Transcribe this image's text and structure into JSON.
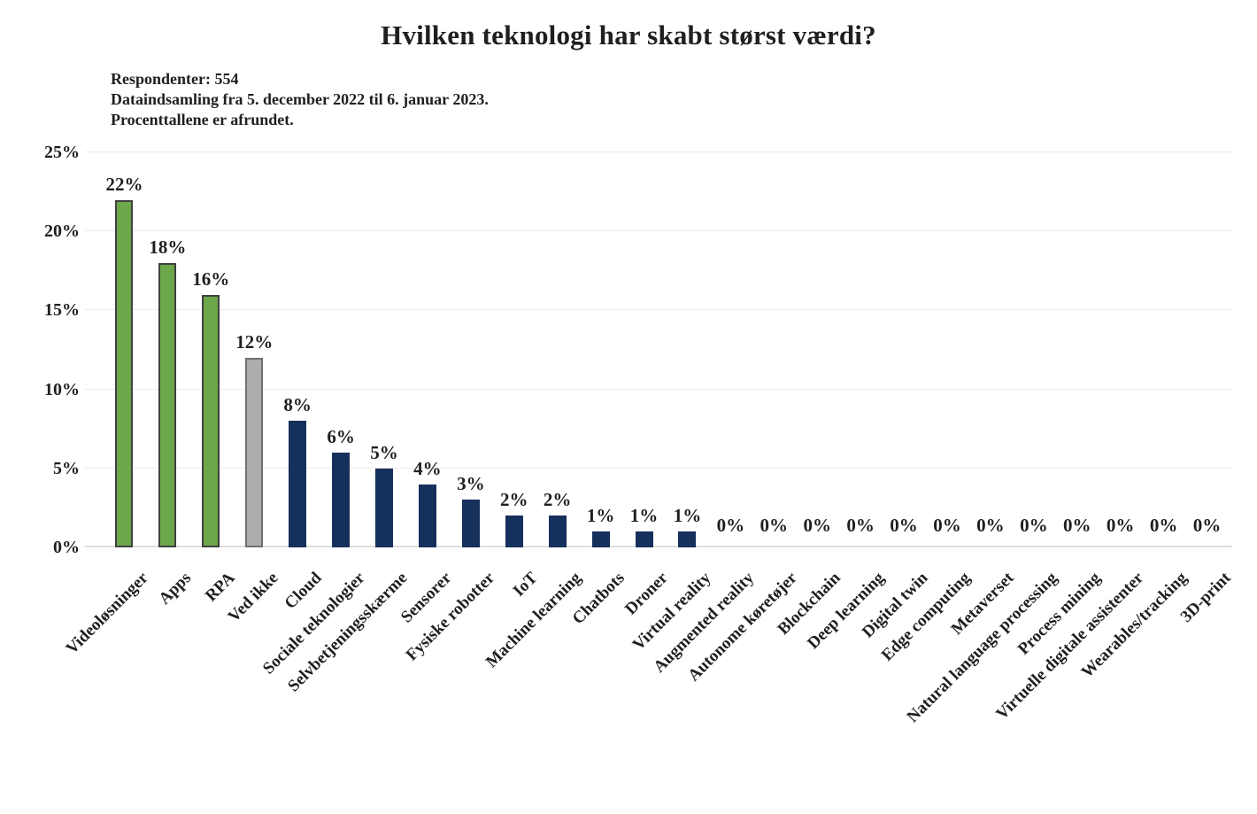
{
  "title": "Hvilken teknologi har skabt størst værdi?",
  "subtitle_lines": [
    "Respondenter: 554",
    "Dataindsamling fra 5. december 2022 til 6. januar 2023.",
    "Procenttallene er afrundet."
  ],
  "chart_data": {
    "type": "bar",
    "title": "Hvilken teknologi har skabt størst værdi?",
    "xlabel": "",
    "ylabel": "",
    "ylim": [
      0,
      25
    ],
    "grid": true,
    "legend": "none",
    "categories": [
      "Videoløsninger",
      "Apps",
      "RPA",
      "Ved ikke",
      "Cloud",
      "Sociale teknologier",
      "Selvbetjeningsskærme",
      "Sensorer",
      "Fysiske robotter",
      "IoT",
      "Machine learning",
      "Chatbots",
      "Droner",
      "Virtual reality",
      "Augmented reality",
      "Autonome køretøjer",
      "Blockchain",
      "Deep learning",
      "Digital twin",
      "Edge computing",
      "Metaverset",
      "Natural language processing",
      "Process mining",
      "Virtuelle digitale assistenter",
      "Wearables/tracking",
      "3D-print"
    ],
    "values": [
      22,
      18,
      16,
      12,
      8,
      6,
      5,
      4,
      3,
      2,
      2,
      1,
      1,
      1,
      0,
      0,
      0,
      0,
      0,
      0,
      0,
      0,
      0,
      0,
      0,
      0
    ],
    "value_labels": [
      "22%",
      "18%",
      "16%",
      "12%",
      "8%",
      "6%",
      "5%",
      "4%",
      "3%",
      "2%",
      "2%",
      "1%",
      "1%",
      "1%",
      "0%",
      "0%",
      "0%",
      "0%",
      "0%",
      "0%",
      "0%",
      "0%",
      "0%",
      "0%",
      "0%",
      "0%"
    ],
    "bar_colors": [
      "green",
      "green",
      "green",
      "gray",
      "navy",
      "navy",
      "navy",
      "navy",
      "navy",
      "navy",
      "navy",
      "navy",
      "navy",
      "navy",
      "navy",
      "navy",
      "navy",
      "navy",
      "navy",
      "navy",
      "navy",
      "navy",
      "navy",
      "navy",
      "navy",
      "navy"
    ],
    "ytick_values": [
      0,
      5,
      10,
      15,
      20,
      25
    ],
    "ytick_labels": [
      "0%",
      "5%",
      "10%",
      "15%",
      "20%",
      "25%"
    ]
  },
  "colors": {
    "green_fill": "#6CA74A",
    "green_border": "#404040",
    "gray_fill": "#ADADAD",
    "gray_border": "#707070",
    "navy_fill": "#16305C",
    "navy_border": "#16305C",
    "grid": "#EBEBEB",
    "baseline": "#DEDEDE",
    "text": "#1F1F1F"
  }
}
